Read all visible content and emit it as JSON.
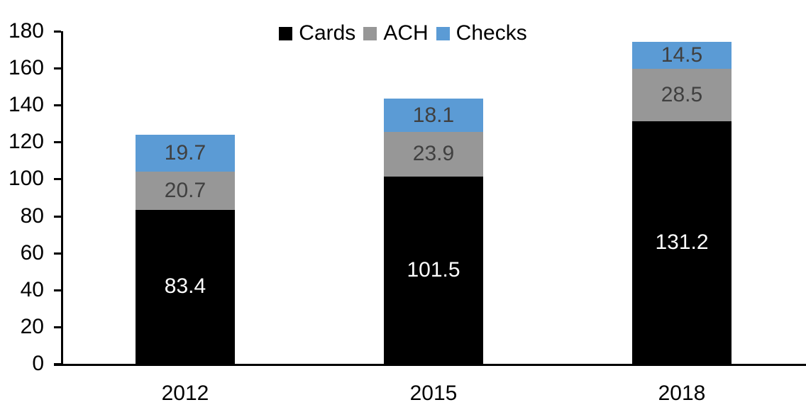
{
  "chart_data": {
    "type": "bar",
    "stacked": true,
    "title": "",
    "xlabel": "",
    "ylabel": "",
    "categories": [
      "2012",
      "2015",
      "2018"
    ],
    "series": [
      {
        "name": "Cards",
        "color": "#000000",
        "label_color": "#ffffff",
        "values": [
          83.4,
          101.5,
          131.2
        ]
      },
      {
        "name": "ACH",
        "color": "#979797",
        "label_color": "#404040",
        "values": [
          20.7,
          23.9,
          28.5
        ]
      },
      {
        "name": "Checks",
        "color": "#5B9BD5",
        "label_color": "#404040",
        "values": [
          19.7,
          18.1,
          14.5
        ]
      }
    ],
    "totals": [
      123.8,
      143.5,
      174.2
    ],
    "ylim": [
      0,
      180
    ],
    "y_ticks": [
      0,
      20,
      40,
      60,
      80,
      100,
      120,
      140,
      160,
      180
    ],
    "grid": false,
    "legend_position": "top",
    "axis_color": "#000000",
    "text_color": "#000000",
    "background_color": "#ffffff"
  }
}
